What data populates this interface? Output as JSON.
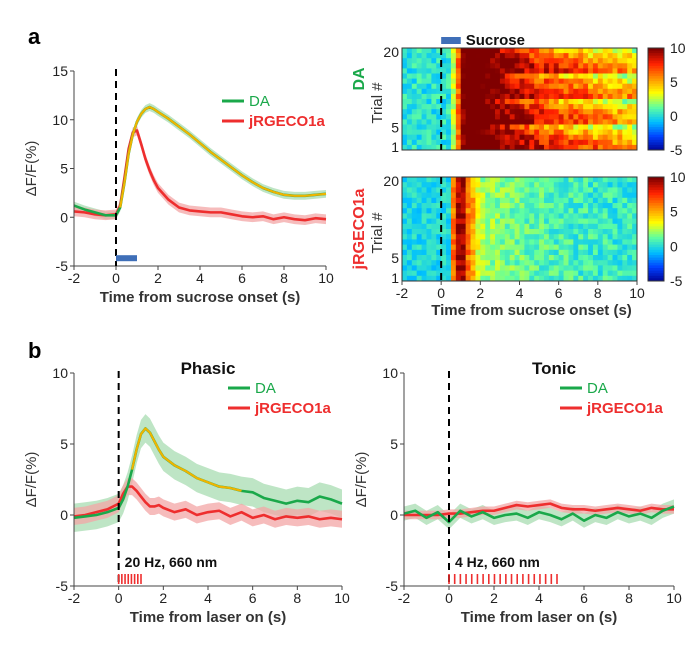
{
  "panel_labels": {
    "a": "a",
    "b": "b"
  },
  "colors": {
    "da": "#1aa84a",
    "da_band": "#a8dcb2",
    "jrgeco": "#ee2e2e",
    "jrgeco_band": "#f3a6a6",
    "highlight": "#f0b400",
    "stim_bar": "#3f6fb8",
    "laser": "#ee2e2e"
  },
  "heatmap_colorscale": [
    "#00008f",
    "#0040ff",
    "#00c0ff",
    "#60ffa0",
    "#ffff00",
    "#ff9000",
    "#ff2000",
    "#800000"
  ],
  "chart_data": [
    {
      "id": "a-trace",
      "type": "line",
      "xlabel": "Time from sucrose onset (s)",
      "ylabel": "ΔF/F(%)",
      "xlim": [
        -2,
        10
      ],
      "ylim": [
        -5,
        15
      ],
      "xticks": [
        -2,
        0,
        2,
        4,
        6,
        8,
        10
      ],
      "yticks": [
        -5,
        0,
        5,
        10,
        15
      ],
      "xtick_labels": [
        "-2",
        "0",
        "2",
        "4",
        "6",
        "8",
        "10"
      ],
      "ytick_labels": [
        "-5",
        "0",
        "5",
        "10",
        "15"
      ],
      "stimulus_bar": [
        0,
        1
      ],
      "highlight_range": [
        0.2,
        10
      ],
      "legend": [
        "DA",
        "jRGECO1a"
      ],
      "series": [
        {
          "name": "DA",
          "x": [
            -2,
            -1.5,
            -1,
            -0.5,
            0,
            0.2,
            0.4,
            0.6,
            0.8,
            1,
            1.2,
            1.4,
            1.6,
            1.8,
            2,
            2.5,
            3,
            3.5,
            4,
            4.5,
            5,
            5.5,
            6,
            6.5,
            7,
            7.5,
            8,
            8.5,
            9,
            9.5,
            10
          ],
          "y": [
            1.2,
            0.8,
            0.5,
            0.2,
            0.2,
            1,
            3.5,
            6.5,
            8.5,
            9.8,
            10.6,
            11.1,
            11.3,
            11.1,
            10.8,
            10.1,
            9.3,
            8.5,
            7.6,
            6.7,
            5.9,
            5.1,
            4.3,
            3.6,
            3,
            2.6,
            2.3,
            2.2,
            2.2,
            2.3,
            2.4
          ],
          "band": 0.4
        },
        {
          "name": "jRGECO1a",
          "x": [
            -2,
            -1.5,
            -1,
            -0.5,
            0,
            0.2,
            0.4,
            0.6,
            0.8,
            1,
            1.2,
            1.4,
            1.6,
            1.8,
            2,
            2.5,
            3,
            3.5,
            4,
            4.5,
            5,
            5.5,
            6,
            6.5,
            7,
            7.5,
            8,
            8.5,
            9,
            9.5,
            10
          ],
          "y": [
            0.6,
            0.5,
            0.3,
            0.2,
            0.3,
            1.2,
            4,
            7,
            8.7,
            8.9,
            7.5,
            6,
            4.8,
            3.8,
            3,
            1.8,
            1,
            0.7,
            0.6,
            0.5,
            0.5,
            0.3,
            0.1,
            0,
            0.1,
            -0.2,
            0,
            -0.2,
            -0.3,
            -0.1,
            -0.2
          ],
          "band": 0.5
        }
      ]
    },
    {
      "id": "a-heatmap-da",
      "type": "heatmap",
      "title": "DA",
      "stimulus_label": "Sucrose",
      "ylabel": "Trial #",
      "xlim": [
        -2,
        10
      ],
      "xticks": [
        -2,
        0,
        2,
        4,
        6,
        8,
        10
      ],
      "xtick_labels": [
        "-2",
        "0",
        "2",
        "4",
        "6",
        "8",
        "10"
      ],
      "ytick_labels": [
        "20",
        "5",
        "1"
      ],
      "trials": 20,
      "zlim": [
        -5,
        10
      ],
      "colorbar_ticks": [
        -5,
        0,
        5,
        10
      ],
      "colorbar_labels": [
        "-5",
        "0",
        "5",
        "10"
      ]
    },
    {
      "id": "a-heatmap-jrgeco",
      "type": "heatmap",
      "title": "jRGECO1a",
      "ylabel": "Trial #",
      "xlabel": "Time from sucrose onset (s)",
      "xlim": [
        -2,
        10
      ],
      "xticks": [
        -2,
        0,
        2,
        4,
        6,
        8,
        10
      ],
      "xtick_labels": [
        "-2",
        "0",
        "2",
        "4",
        "6",
        "8",
        "10"
      ],
      "ytick_labels": [
        "20",
        "5",
        "1"
      ],
      "trials": 20,
      "zlim": [
        -5,
        10
      ],
      "colorbar_ticks": [
        -5,
        0,
        5,
        10
      ],
      "colorbar_labels": [
        "-5",
        "0",
        "5",
        "10"
      ]
    },
    {
      "id": "b-phasic",
      "type": "line",
      "title": "Phasic",
      "xlabel": "Time from laser on (s)",
      "ylabel": "ΔF/F(%)",
      "xlim": [
        -2,
        10
      ],
      "ylim": [
        -5,
        10
      ],
      "xticks": [
        -2,
        0,
        2,
        4,
        6,
        8,
        10
      ],
      "yticks": [
        -5,
        0,
        5,
        10
      ],
      "xtick_labels": [
        "-2",
        "0",
        "2",
        "4",
        "6",
        "8",
        "10"
      ],
      "ytick_labels": [
        "-5",
        "0",
        "5",
        "10"
      ],
      "laser_label": "20 Hz,    660 nm",
      "laser_pulses": {
        "start": 0,
        "end": 1,
        "count": 8
      },
      "highlight_range": [
        0.6,
        5.6
      ],
      "legend": [
        "DA",
        "jRGECO1a"
      ],
      "series": [
        {
          "name": "DA",
          "x": [
            -2,
            -1.5,
            -1,
            -0.5,
            0,
            0.2,
            0.4,
            0.6,
            0.8,
            1,
            1.2,
            1.4,
            1.6,
            1.8,
            2,
            2.5,
            3,
            3.5,
            4,
            4.5,
            5,
            5.5,
            6,
            6.5,
            7,
            7.5,
            8,
            8.5,
            9,
            9.5,
            10
          ],
          "y": [
            -0.2,
            -0.1,
            0,
            0.2,
            0.5,
            1.1,
            2,
            3.2,
            4.6,
            5.7,
            6.1,
            5.8,
            5.2,
            4.6,
            4.1,
            3.5,
            3.1,
            2.6,
            2.3,
            2,
            1.9,
            1.7,
            1.6,
            1.2,
            1,
            0.8,
            1,
            0.9,
            1.3,
            1.1,
            0.8
          ],
          "band": 1
        },
        {
          "name": "jRGECO1a",
          "x": [
            -2,
            -1.5,
            -1,
            -0.5,
            0,
            0.2,
            0.4,
            0.6,
            0.8,
            1,
            1.2,
            1.4,
            1.6,
            1.8,
            2,
            2.5,
            3,
            3.5,
            4,
            4.5,
            5,
            5.5,
            6,
            6.5,
            7,
            7.5,
            8,
            8.5,
            9,
            9.5,
            10
          ],
          "y": [
            -0.1,
            0,
            0.2,
            0.4,
            0.8,
            1.5,
            2,
            2,
            1.7,
            1.3,
            0.9,
            0.6,
            0.6,
            0.7,
            0.5,
            0.2,
            0.4,
            0,
            0.2,
            0.3,
            -0.1,
            0.2,
            -0.2,
            0,
            -0.3,
            -0.1,
            -0.2,
            -0.1,
            -0.3,
            -0.2,
            -0.3
          ],
          "band": 0.6
        }
      ]
    },
    {
      "id": "b-tonic",
      "type": "line",
      "title": "Tonic",
      "xlabel": "Time from laser on (s)",
      "ylabel": "ΔF/F(%)",
      "xlim": [
        -2,
        10
      ],
      "ylim": [
        -5,
        10
      ],
      "xticks": [
        -2,
        0,
        2,
        4,
        6,
        8,
        10
      ],
      "yticks": [
        -5,
        0,
        5,
        10
      ],
      "xtick_labels": [
        "-2",
        "0",
        "2",
        "4",
        "6",
        "8",
        "10"
      ],
      "ytick_labels": [
        "-5",
        "0",
        "5",
        "10"
      ],
      "laser_label": "4 Hz,    660 nm",
      "laser_pulses": {
        "start": 0,
        "end": 4.8,
        "count": 20
      },
      "legend": [
        "DA",
        "jRGECO1a"
      ],
      "series": [
        {
          "name": "DA",
          "x": [
            -2,
            -1.5,
            -1,
            -0.5,
            0,
            0.5,
            1,
            1.5,
            2,
            2.5,
            3,
            3.5,
            4,
            4.5,
            5,
            5.5,
            6,
            6.5,
            7,
            7.5,
            8,
            8.5,
            9,
            9.5,
            10
          ],
          "y": [
            0.1,
            0.3,
            -0.2,
            0.2,
            -0.5,
            0.3,
            -0.1,
            0.2,
            -0.2,
            0,
            0.1,
            -0.2,
            0.2,
            0,
            -0.3,
            0.1,
            -0.4,
            0,
            -0.2,
            0.2,
            -0.1,
            0.1,
            -0.2,
            0.3,
            0.6
          ],
          "band": 0.5
        },
        {
          "name": "jRGECO1a",
          "x": [
            -2,
            -1.5,
            -1,
            -0.5,
            0,
            0.5,
            1,
            1.5,
            2,
            2.5,
            3,
            3.5,
            4,
            4.5,
            5,
            5.5,
            6,
            6.5,
            7,
            7.5,
            8,
            8.5,
            9,
            9.5,
            10
          ],
          "y": [
            0,
            0,
            0,
            0,
            0.1,
            0.1,
            0.2,
            0.3,
            0.3,
            0.5,
            0.7,
            0.6,
            0.7,
            0.8,
            0.5,
            0.4,
            0.4,
            0.3,
            0.4,
            0.5,
            0.4,
            0.3,
            0.5,
            0.4,
            0.4
          ],
          "band": 0.3
        }
      ]
    }
  ]
}
